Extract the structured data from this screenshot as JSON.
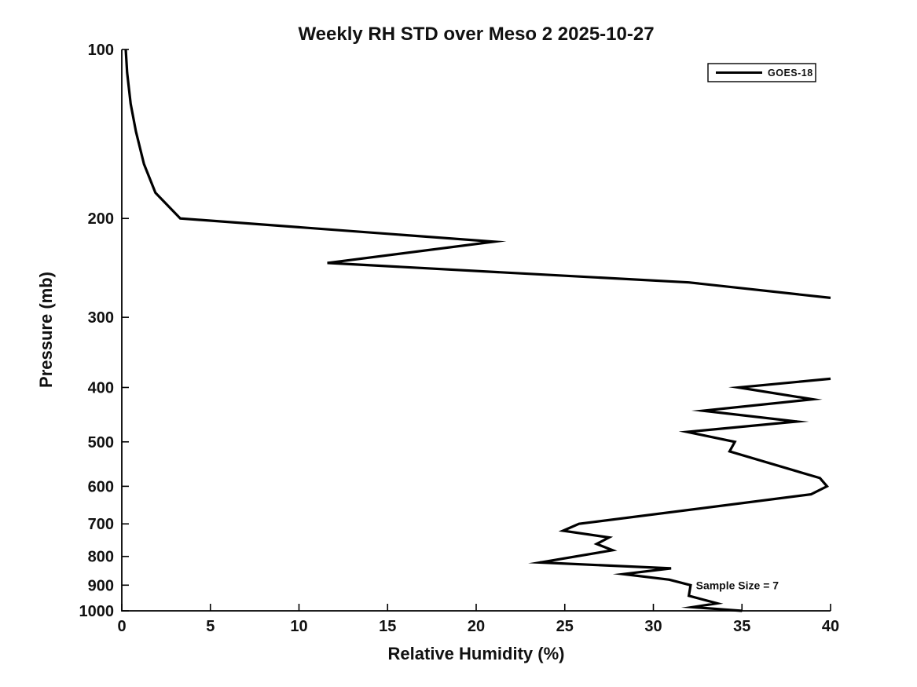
{
  "figure": {
    "background": "#ffffff",
    "text_color": "#111111"
  },
  "chart_data": {
    "type": "line",
    "title": "Weekly RH STD over Meso 2 2025-10-27",
    "xlabel": "Relative Humidity (%)",
    "ylabel": "Pressure (mb)",
    "xlim": [
      0,
      40
    ],
    "ylim": [
      100,
      1000
    ],
    "yscale": "log",
    "y_inverted": true,
    "xticks": [
      0,
      5,
      10,
      15,
      20,
      25,
      30,
      35,
      40
    ],
    "yticks": [
      100,
      200,
      300,
      400,
      500,
      600,
      700,
      800,
      900,
      1000
    ],
    "grid": false,
    "line_color": "#000000",
    "line_width": 3.2,
    "legend": {
      "position": "upper-right",
      "entries": [
        {
          "label": "GOES-18",
          "color": "#000000"
        }
      ]
    },
    "annotation": {
      "text": "Sample Size = 7",
      "x": 32.4,
      "y": 900
    },
    "offscale": "series exceeds x-axis max (40) between ~277 mb and ~386 mb; line is clipped at the right axis edge",
    "series": [
      {
        "name": "GOES-18",
        "segments": [
          [
            [
              0.22,
              100
            ],
            [
              0.3,
              110
            ],
            [
              0.5,
              125
            ],
            [
              0.8,
              140
            ],
            [
              1.25,
              160
            ],
            [
              1.9,
              180
            ],
            [
              3.3,
              200
            ],
            [
              21.0,
              220
            ],
            [
              11.6,
              240
            ],
            [
              32.0,
              260
            ],
            [
              40.0,
              277
            ]
          ],
          [
            [
              40.0,
              386
            ],
            [
              34.8,
              400
            ],
            [
              39.0,
              420
            ],
            [
              32.8,
              440
            ],
            [
              38.1,
              460
            ],
            [
              31.9,
              480
            ],
            [
              34.6,
              500
            ],
            [
              34.3,
              520
            ],
            [
              39.4,
              580
            ],
            [
              39.8,
              600
            ],
            [
              38.9,
              620
            ],
            [
              25.8,
              700
            ],
            [
              24.9,
              720
            ],
            [
              27.5,
              740
            ],
            [
              26.8,
              760
            ],
            [
              27.7,
              780
            ],
            [
              23.6,
              820
            ],
            [
              31.0,
              840
            ],
            [
              28.3,
              860
            ],
            [
              30.9,
              880
            ],
            [
              32.1,
              900
            ],
            [
              32.0,
              940
            ],
            [
              33.6,
              970
            ],
            [
              32.2,
              985
            ],
            [
              35.0,
              1000
            ]
          ]
        ]
      }
    ]
  }
}
